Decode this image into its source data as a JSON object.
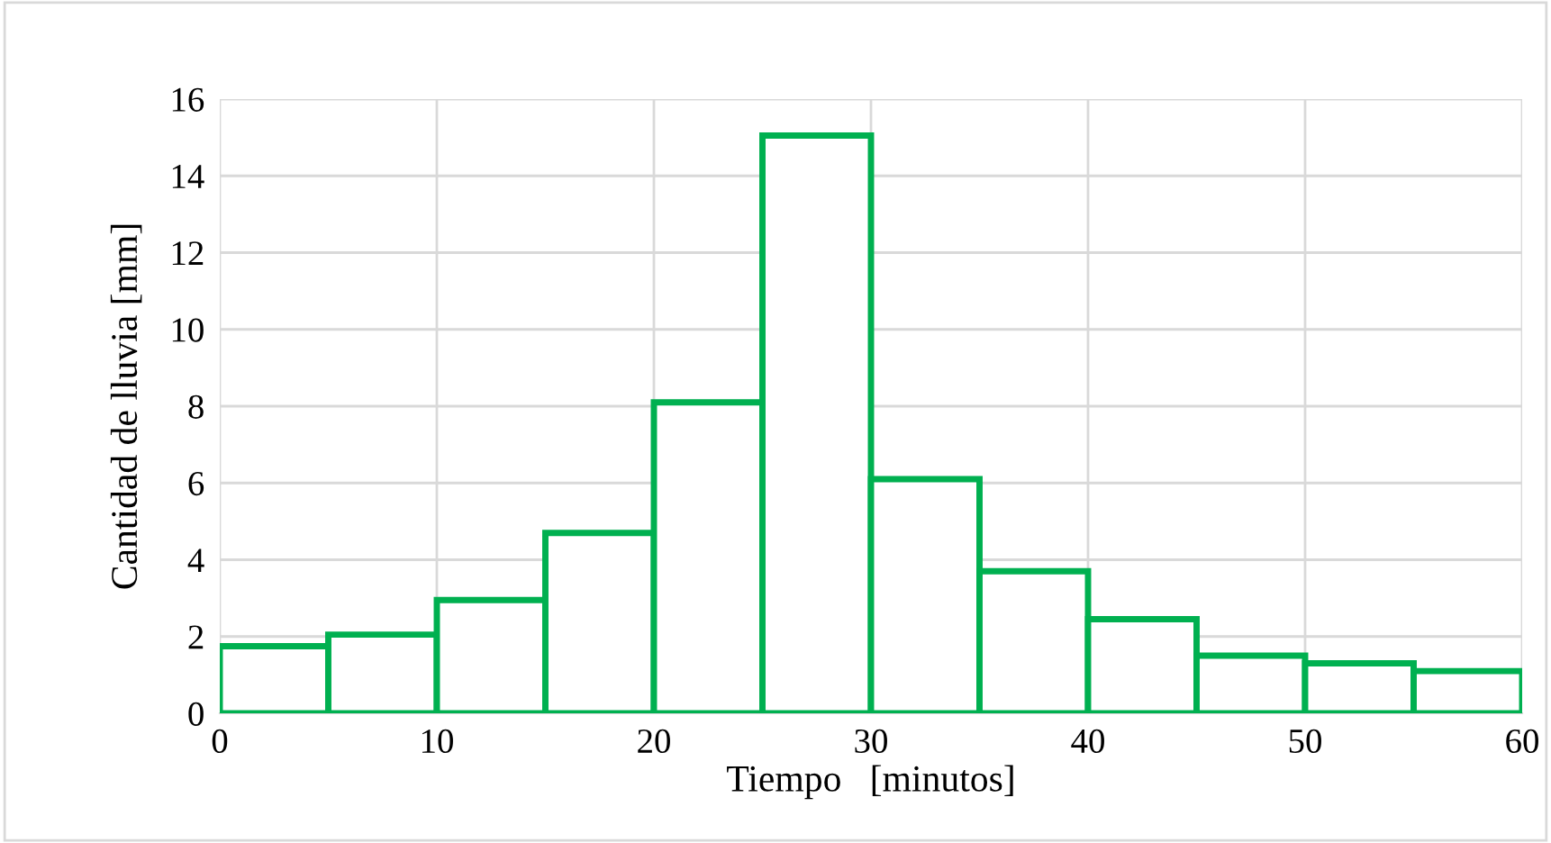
{
  "chart_data": {
    "type": "histogram",
    "xlabel": "Tiempo   [minutos]",
    "ylabel": "Cantidad de lluvia [mm]",
    "bins": [
      0,
      5,
      10,
      15,
      20,
      25,
      30,
      35,
      40,
      45,
      50,
      55,
      60
    ],
    "values": [
      1.75,
      2.05,
      2.95,
      4.7,
      8.1,
      15.05,
      6.1,
      3.7,
      2.45,
      1.5,
      1.3,
      1.1
    ],
    "color": "#00b050",
    "xlim": [
      0,
      60
    ],
    "xticks": [
      0,
      10,
      20,
      30,
      40,
      50,
      60
    ],
    "ylim": [
      0,
      16
    ],
    "yticks": [
      0,
      2,
      4,
      6,
      8,
      10,
      12,
      14,
      16
    ],
    "grid": true
  }
}
